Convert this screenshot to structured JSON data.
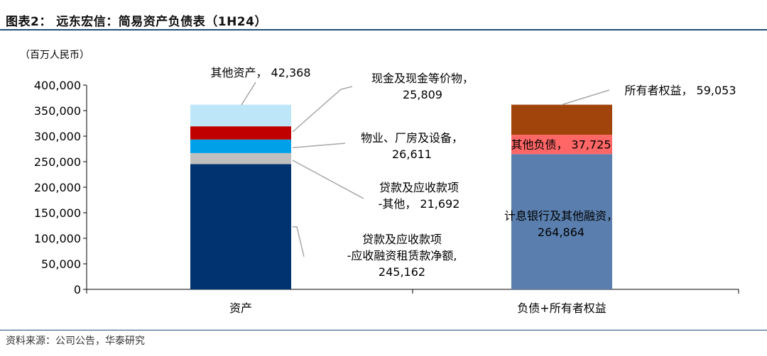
{
  "header": {
    "title": "图表2：  远东宏信：简易资产负债表（1H24）"
  },
  "footer": {
    "source": "资料来源：公司公告，华泰研究"
  },
  "chart_data": {
    "type": "bar",
    "stacked": true,
    "unit_label": "（百万人民币）",
    "categories": [
      "资产",
      "负债+所有者权益"
    ],
    "ylim": [
      0,
      400000
    ],
    "yticks": [
      "0",
      "50,000",
      "100,000",
      "150,000",
      "200,000",
      "250,000",
      "300,000",
      "350,000",
      "400,000"
    ],
    "grid": false,
    "stacks": [
      {
        "category": "资产",
        "segments": [
          {
            "name": "贷款及应收款项-应收融资租赁款净额",
            "value": 245162,
            "color": "#003370",
            "label_lines": [
              "贷款及应收款项",
              "-应收融资租赁款净额,",
              "245,162"
            ]
          },
          {
            "name": "贷款及应收款项-其他",
            "value": 21692,
            "color": "#bfbfbf",
            "label_lines": [
              "贷款及应收款项",
              "-其他， 21,692"
            ]
          },
          {
            "name": "物业、厂房及设备",
            "value": 26611,
            "color": "#00a0e9",
            "label_lines": [
              "物业、厂房及设备，",
              "26,611"
            ]
          },
          {
            "name": "现金及现金等价物",
            "value": 25809,
            "color": "#c00000",
            "label_lines": [
              "现金及现金等价物，",
              "25,809"
            ]
          },
          {
            "name": "其他资产",
            "value": 42368,
            "color": "#bde7f8",
            "label_lines": [
              "其他资产， 42,368"
            ]
          }
        ]
      },
      {
        "category": "负债+所有者权益",
        "segments": [
          {
            "name": "计息银行及其他融资",
            "value": 264864,
            "color": "#5a7fae",
            "label_lines": [
              "计息银行及其他融资，",
              "264,864"
            ]
          },
          {
            "name": "其他负债",
            "value": 37725,
            "color": "#ff6666",
            "label_lines": [
              "其他负债， 37,725"
            ]
          },
          {
            "name": "所有者权益",
            "value": 59053,
            "color": "#a0440c",
            "label_lines": [
              "所有者权益， 59,053"
            ]
          }
        ]
      }
    ]
  }
}
